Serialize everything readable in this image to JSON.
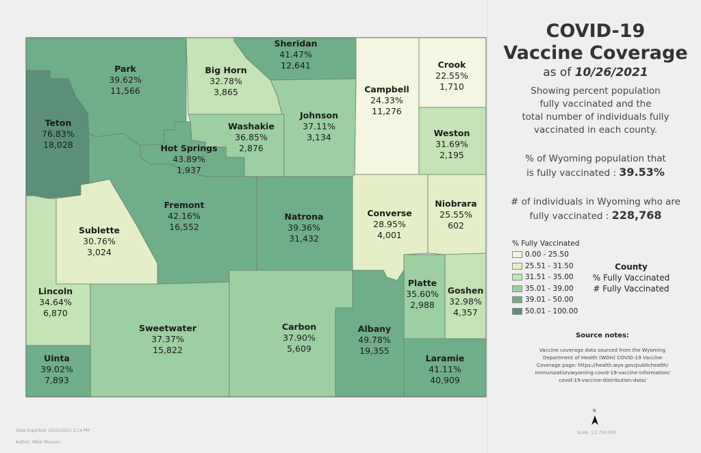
{
  "title": {
    "line1": "COVID-19",
    "line2": "Vaccine Coverage",
    "as_of_prefix": "as of ",
    "date": "10/26/2021"
  },
  "description": [
    "Showing percent population",
    "fully vaccinated and the",
    "total number of individuals fully",
    "vaccinated in each county."
  ],
  "stats": {
    "pct_label_1": "% of Wyoming population that",
    "pct_label_2": "is fully vaccinated : ",
    "pct_value": "39.53%",
    "count_label_1": "# of individuals in Wyoming who are",
    "count_label_2": "fully vaccinated : ",
    "count_value": "228,768"
  },
  "legend": {
    "title": "% Fully Vaccinated",
    "classes": [
      {
        "label": "0.00 - 25.50",
        "color": "#f3f6e0"
      },
      {
        "label": "25.51 - 31.50",
        "color": "#e4efc7"
      },
      {
        "label": "31.51 - 35.00",
        "color": "#c4e3b6"
      },
      {
        "label": "35.01 - 39.00",
        "color": "#9ccfa2"
      },
      {
        "label": "39.01 - 50.00",
        "color": "#70ae89"
      },
      {
        "label": "50.01 - 100.00",
        "color": "#5b8f79"
      }
    ]
  },
  "label_key": {
    "title": "County",
    "line2": "% Fully Vaccinated",
    "line3": "# Fully Vaccinated"
  },
  "counties": [
    {
      "name": "Park",
      "pct": "39.62%",
      "count": "11,566",
      "cls": 4
    },
    {
      "name": "Big Horn",
      "pct": "32.78%",
      "count": "3,865",
      "cls": 2
    },
    {
      "name": "Sheridan",
      "pct": "41.47%",
      "count": "12,641",
      "cls": 4
    },
    {
      "name": "Campbell",
      "pct": "24.33%",
      "count": "11,276",
      "cls": 0
    },
    {
      "name": "Crook",
      "pct": "22.55%",
      "count": "1,710",
      "cls": 0
    },
    {
      "name": "Teton",
      "pct": "76.83%",
      "count": "18,028",
      "cls": 5
    },
    {
      "name": "Johnson",
      "pct": "37.11%",
      "count": "3,134",
      "cls": 3
    },
    {
      "name": "Washakie",
      "pct": "36.85%",
      "count": "2,876",
      "cls": 3
    },
    {
      "name": "Hot Springs",
      "pct": "43.89%",
      "count": "1,937",
      "cls": 4
    },
    {
      "name": "Weston",
      "pct": "31.69%",
      "count": "2,195",
      "cls": 2
    },
    {
      "name": "Fremont",
      "pct": "42.16%",
      "count": "16,552",
      "cls": 4
    },
    {
      "name": "Natrona",
      "pct": "39.36%",
      "count": "31,432",
      "cls": 4
    },
    {
      "name": "Converse",
      "pct": "28.95%",
      "count": "4,001",
      "cls": 1
    },
    {
      "name": "Niobrara",
      "pct": "25.55%",
      "count": "602",
      "cls": 1
    },
    {
      "name": "Sublette",
      "pct": "30.76%",
      "count": "3,024",
      "cls": 1
    },
    {
      "name": "Lincoln",
      "pct": "34.64%",
      "count": "6,870",
      "cls": 2
    },
    {
      "name": "Platte",
      "pct": "35.60%",
      "count": "2,988",
      "cls": 3
    },
    {
      "name": "Goshen",
      "pct": "32.98%",
      "count": "4,357",
      "cls": 2
    },
    {
      "name": "Sweetwater",
      "pct": "37.37%",
      "count": "15,822",
      "cls": 3
    },
    {
      "name": "Carbon",
      "pct": "37.90%",
      "count": "5,609",
      "cls": 3
    },
    {
      "name": "Albany",
      "pct": "49.78%",
      "count": "19,355",
      "cls": 4
    },
    {
      "name": "Uinta",
      "pct": "39.02%",
      "count": "7,893",
      "cls": 4
    },
    {
      "name": "Laramie",
      "pct": "41.11%",
      "count": "40,909",
      "cls": 4
    }
  ],
  "source_notes": {
    "title": "Source notes:",
    "lines": [
      "Vaccine coverage data sourced from the Wyoming",
      "Department of Health (WDH) COVID-19 Vaccine",
      "Coverage page: https://health.wyo.gov/publichealth/",
      "immunization/wyoming-covid-19-vaccine-information/",
      "covid-19-vaccine-distribution-data/"
    ]
  },
  "north_label": "N",
  "scale": "Scale: 1:2,750,000",
  "date_exported": "Date Exported: 10/25/2021 2:14 PM",
  "author": "Author: Mikki Munson"
}
